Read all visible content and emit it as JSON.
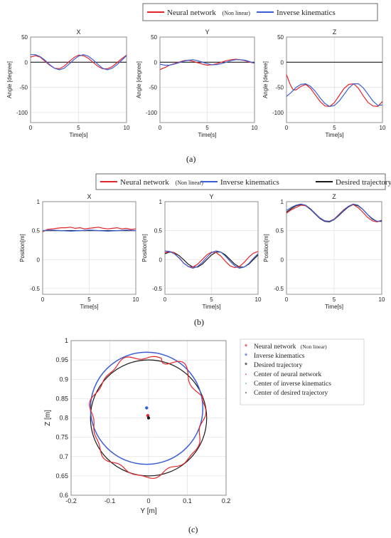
{
  "captions": {
    "a": "(a)",
    "b": "(b)",
    "c": "(c)"
  },
  "colors": {
    "neural": "#e5242a",
    "inverse": "#3a5fd4",
    "desired": "#1a1a1a",
    "grid": "#d9d9d9",
    "inverse_center": "#2aa8a8"
  },
  "chart_data": [
    {
      "panel": "a",
      "type": "line",
      "legend": {
        "placement": "top-right",
        "entries": [
          {
            "label": "Neural network",
            "sublabel": "(Non linear)",
            "color": "#e5242a"
          },
          {
            "label": "Inverse kinematics",
            "sublabel": "",
            "color": "#3a5fd4"
          }
        ]
      },
      "ylabel": "Angle [degree]",
      "xlabel": "Time[s]",
      "xlim": [
        0,
        10
      ],
      "ylim": [
        -120,
        50
      ],
      "xticks": [
        "0",
        "5",
        "10"
      ],
      "yticks": [
        "50",
        "0",
        "-50",
        "-100"
      ],
      "grid": true,
      "subplots": [
        {
          "title": "X",
          "series": [
            {
              "name": "Neural network (Non linear)",
              "x": [
                0,
                0.5,
                1,
                1.5,
                2,
                2.5,
                3,
                3.5,
                4,
                4.5,
                5,
                5.5,
                6,
                6.5,
                7,
                7.5,
                8,
                8.5,
                9,
                9.5,
                10
              ],
              "y": [
                10,
                13,
                10,
                2,
                -6,
                -12,
                -13,
                -8,
                1,
                9,
                14,
                13,
                8,
                0,
                -8,
                -13,
                -13,
                -9,
                -1,
                7,
                14
              ]
            },
            {
              "name": "Inverse kinematics",
              "x": [
                0,
                0.5,
                1,
                1.5,
                2,
                2.5,
                3,
                3.5,
                4,
                4.5,
                5,
                5.5,
                6,
                6.5,
                7,
                7.5,
                8,
                8.5,
                9,
                9.5,
                10
              ],
              "y": [
                15,
                15,
                11,
                4,
                -5,
                -12,
                -15,
                -12,
                -4,
                5,
                12,
                15,
                12,
                5,
                -4,
                -12,
                -15,
                -12,
                -5,
                4,
                13
              ]
            },
            {
              "name": "Desired",
              "x": [
                0,
                10
              ],
              "y": [
                0,
                0
              ]
            }
          ]
        },
        {
          "title": "Y",
          "series": [
            {
              "name": "Neural network (Non linear)",
              "x": [
                0,
                0.3,
                0.6,
                1,
                1.5,
                2,
                2.5,
                3,
                3.5,
                4,
                4.5,
                5,
                5.5,
                6,
                6.5,
                7,
                7.5,
                8,
                8.5,
                9,
                9.5,
                10
              ],
              "y": [
                -15,
                -12,
                -10,
                -6,
                -3,
                0,
                3,
                4,
                2,
                -1,
                -4,
                -6,
                -5,
                -3,
                0,
                3,
                5,
                6,
                5,
                3,
                0,
                -2
              ]
            },
            {
              "name": "Inverse kinematics",
              "x": [
                0,
                0.5,
                1,
                1.5,
                2,
                2.5,
                3,
                3.5,
                4,
                4.5,
                5,
                5.5,
                6,
                6.5,
                7,
                7.5,
                8,
                8.5,
                9,
                9.5,
                10
              ],
              "y": [
                -4,
                -6,
                -6,
                -4,
                -1,
                2,
                4,
                5,
                3,
                0,
                -3,
                -5,
                -5,
                -3,
                0,
                3,
                5,
                5,
                4,
                1,
                -2
              ]
            },
            {
              "name": "Desired",
              "x": [
                0,
                10
              ],
              "y": [
                0,
                0
              ]
            }
          ]
        },
        {
          "title": "Z",
          "series": [
            {
              "name": "Neural network (Non linear)",
              "x": [
                0,
                0.2,
                0.4,
                0.7,
                1,
                1.5,
                2,
                2.5,
                3,
                3.5,
                4,
                4.5,
                5,
                5.5,
                6,
                6.5,
                7,
                7.5,
                8,
                8.5,
                9,
                9.5,
                10
              ],
              "y": [
                -25,
                -35,
                -45,
                -55,
                -55,
                -48,
                -44,
                -52,
                -65,
                -78,
                -87,
                -88,
                -80,
                -66,
                -52,
                -44,
                -43,
                -52,
                -67,
                -80,
                -87,
                -88,
                -78
              ]
            },
            {
              "name": "Inverse kinematics",
              "x": [
                0,
                0.5,
                1,
                1.5,
                2,
                2.5,
                3,
                3.5,
                4,
                4.5,
                5,
                5.5,
                6,
                6.5,
                7,
                7.5,
                8,
                8.5,
                9,
                9.5,
                10
              ],
              "y": [
                -68,
                -60,
                -50,
                -44,
                -43,
                -48,
                -58,
                -71,
                -82,
                -88,
                -86,
                -77,
                -64,
                -51,
                -43,
                -43,
                -51,
                -64,
                -77,
                -86,
                -85
              ]
            },
            {
              "name": "Desired",
              "x": [
                0,
                10
              ],
              "y": [
                0,
                0
              ]
            }
          ]
        }
      ]
    },
    {
      "panel": "b",
      "type": "line",
      "legend": {
        "placement": "top",
        "entries": [
          {
            "label": "Neural network",
            "sublabel": "(Non linear)",
            "color": "#e5242a"
          },
          {
            "label": "Inverse kinematics",
            "sublabel": "",
            "color": "#3a5fd4"
          },
          {
            "label": "Desired trajectory",
            "sublabel": "",
            "color": "#1a1a1a"
          }
        ]
      },
      "ylabel": "Position[m]",
      "xlabel": "Time[s]",
      "xlim": [
        0,
        10
      ],
      "ylim": [
        -0.6,
        1
      ],
      "xticks": [
        "0",
        "5",
        "10"
      ],
      "yticks": [
        "1",
        "0.5",
        "0",
        "-0.5"
      ],
      "grid": true,
      "subplots": [
        {
          "title": "X",
          "series": [
            {
              "name": "Neural network (Non linear)",
              "x": [
                0,
                0.5,
                1,
                1.5,
                2,
                2.5,
                3,
                3.5,
                4,
                4.5,
                5,
                5.5,
                6,
                6.5,
                7,
                7.5,
                8,
                8.5,
                9,
                9.5,
                10
              ],
              "y": [
                0.48,
                0.52,
                0.53,
                0.54,
                0.55,
                0.55,
                0.56,
                0.54,
                0.55,
                0.53,
                0.54,
                0.55,
                0.56,
                0.54,
                0.53,
                0.54,
                0.55,
                0.53,
                0.54,
                0.52,
                0.53
              ]
            },
            {
              "name": "Inverse kinematics",
              "x": [
                0,
                1,
                2,
                3,
                4,
                5,
                6,
                7,
                8,
                9,
                10
              ],
              "y": [
                0.5,
                0.51,
                0.5,
                0.49,
                0.5,
                0.51,
                0.5,
                0.49,
                0.5,
                0.51,
                0.5
              ]
            },
            {
              "name": "Desired trajectory",
              "x": [
                0,
                10
              ],
              "y": [
                0.5,
                0.5
              ]
            }
          ]
        },
        {
          "title": "Y",
          "series": [
            {
              "name": "Neural network (Non linear)",
              "x": [
                0,
                0.5,
                1,
                1.3,
                1.6,
                2,
                2.5,
                3,
                3.5,
                4,
                4.5,
                5,
                5.5,
                6,
                6.5,
                7,
                7.5,
                8,
                8.5,
                9,
                9.5,
                10
              ],
              "y": [
                0.12,
                0.14,
                0.12,
                0.06,
                0.02,
                -0.06,
                -0.12,
                -0.13,
                -0.08,
                0.0,
                0.08,
                0.13,
                0.12,
                0.06,
                -0.03,
                -0.11,
                -0.14,
                -0.12,
                -0.05,
                0.04,
                0.11,
                0.14
              ]
            },
            {
              "name": "Inverse kinematics",
              "x": [
                0,
                0.5,
                1,
                1.5,
                2,
                2.5,
                3,
                3.5,
                4,
                4.5,
                5,
                5.5,
                6,
                6.5,
                7,
                7.5,
                8,
                8.5,
                9,
                9.5,
                10
              ],
              "y": [
                0.15,
                0.14,
                0.1,
                0.03,
                -0.06,
                -0.12,
                -0.15,
                -0.12,
                -0.05,
                0.04,
                0.12,
                0.15,
                0.13,
                0.06,
                -0.03,
                -0.11,
                -0.15,
                -0.13,
                -0.07,
                0.02,
                0.1
              ]
            },
            {
              "name": "Desired trajectory",
              "x": [
                0,
                0.5,
                1,
                1.5,
                2,
                2.5,
                3,
                3.5,
                4,
                4.5,
                5,
                5.5,
                6,
                6.5,
                7,
                7.5,
                8,
                8.5,
                9,
                9.5,
                10
              ],
              "y": [
                0.1,
                0.13,
                0.12,
                0.07,
                0.0,
                -0.08,
                -0.13,
                -0.13,
                -0.08,
                0.0,
                0.08,
                0.13,
                0.13,
                0.08,
                0.0,
                -0.08,
                -0.13,
                -0.13,
                -0.08,
                0.0,
                0.08
              ]
            }
          ]
        },
        {
          "title": "Z",
          "series": [
            {
              "name": "Neural network (Non linear)",
              "x": [
                0,
                0.5,
                1,
                1.5,
                2,
                2.5,
                3,
                3.5,
                4,
                4.5,
                5,
                5.5,
                6,
                6.5,
                7,
                7.5,
                8,
                8.5,
                9,
                9.5,
                10
              ],
              "y": [
                0.8,
                0.86,
                0.9,
                0.94,
                0.93,
                0.88,
                0.8,
                0.72,
                0.67,
                0.66,
                0.7,
                0.78,
                0.86,
                0.92,
                0.95,
                0.9,
                0.82,
                0.73,
                0.67,
                0.65,
                0.68
              ]
            },
            {
              "name": "Inverse kinematics",
              "x": [
                0,
                0.5,
                1,
                1.5,
                2,
                2.5,
                3,
                3.5,
                4,
                4.5,
                5,
                5.5,
                6,
                6.5,
                7,
                7.5,
                8,
                8.5,
                9,
                9.5,
                10
              ],
              "y": [
                0.85,
                0.9,
                0.94,
                0.96,
                0.94,
                0.88,
                0.8,
                0.72,
                0.67,
                0.66,
                0.69,
                0.77,
                0.85,
                0.92,
                0.96,
                0.94,
                0.87,
                0.78,
                0.71,
                0.66,
                0.67
              ]
            },
            {
              "name": "Desired trajectory",
              "x": [
                0,
                0.5,
                1,
                1.5,
                2,
                2.5,
                3,
                3.5,
                4,
                4.5,
                5,
                5.5,
                6,
                6.5,
                7,
                7.5,
                8,
                8.5,
                9,
                9.5,
                10
              ],
              "y": [
                0.82,
                0.88,
                0.93,
                0.95,
                0.93,
                0.87,
                0.79,
                0.71,
                0.66,
                0.65,
                0.69,
                0.76,
                0.84,
                0.91,
                0.95,
                0.93,
                0.87,
                0.78,
                0.7,
                0.66,
                0.66
              ]
            }
          ]
        }
      ]
    },
    {
      "panel": "c",
      "type": "scatter",
      "xlabel": "Y [m]",
      "ylabel": "Z [m]",
      "xlim": [
        -0.2,
        0.2
      ],
      "ylim": [
        0.6,
        1.0
      ],
      "xticks": [
        "-0.2",
        "-0.1",
        "0",
        "0.1",
        "0.2"
      ],
      "yticks": [
        "1",
        "0.95",
        "0.9",
        "0.85",
        "0.8",
        "0.75",
        "0.7",
        "0.65",
        "0.6"
      ],
      "grid": true,
      "legend": {
        "placement": "right",
        "entries": [
          {
            "marker": "*",
            "label": "Neural network",
            "sublabel": "(Non linear)",
            "color": "#e5242a"
          },
          {
            "marker": "*",
            "label": "Inverse kinematics",
            "sublabel": "",
            "color": "#3a5fd4"
          },
          {
            "marker": "*",
            "label": "Desired trajectory",
            "sublabel": "",
            "color": "#1a1a1a"
          },
          {
            "marker": "·",
            "label": "Center of neural network",
            "sublabel": "",
            "color": "#e5242a"
          },
          {
            "marker": "·",
            "label": "Center of inverse kinematics",
            "sublabel": "",
            "color": "#2aa8a8"
          },
          {
            "marker": "·",
            "label": "Center of desired trajectory",
            "sublabel": "",
            "color": "#1a1a1a"
          }
        ]
      },
      "circles": [
        {
          "name": "Desired trajectory",
          "center": [
            0.0,
            0.8
          ],
          "radius": 0.15
        },
        {
          "name": "Inverse kinematics",
          "center": [
            -0.005,
            0.825
          ],
          "radius_y": 0.145,
          "radius_z": 0.145
        },
        {
          "name": "Neural network (Non linear)",
          "center": [
            -0.002,
            0.805
          ],
          "radius_y": 0.145,
          "radius_z": 0.155
        }
      ],
      "centers": [
        {
          "name": "Center of inverse kinematics",
          "y": -0.005,
          "z": 0.826
        },
        {
          "name": "Center of neural network",
          "y": -0.002,
          "z": 0.806
        },
        {
          "name": "Center of desired trajectory",
          "y": 0.0,
          "z": 0.8
        }
      ]
    }
  ]
}
